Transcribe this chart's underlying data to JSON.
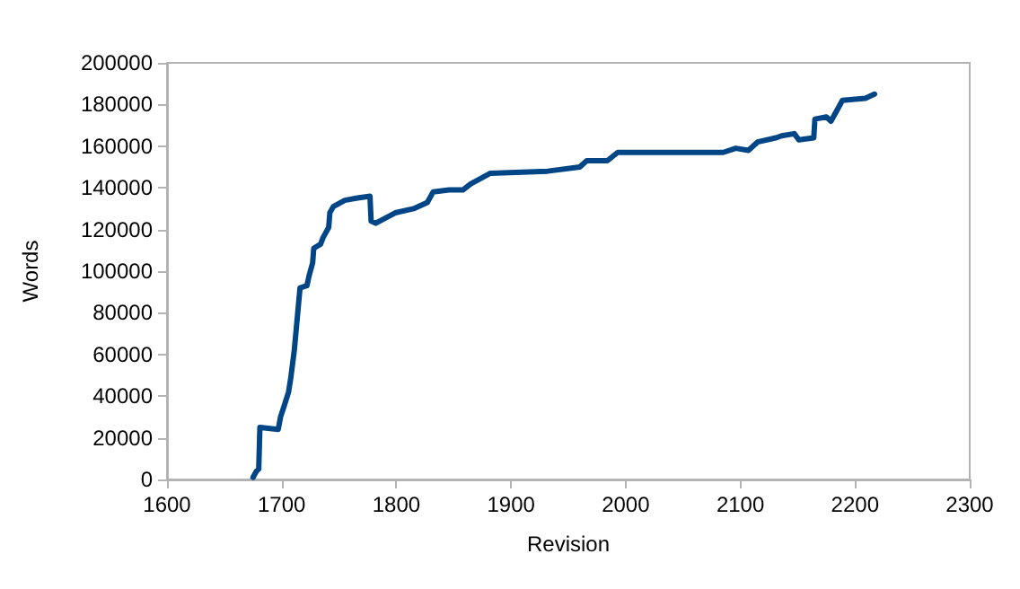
{
  "chart_data": {
    "type": "line",
    "xlabel": "Revision",
    "ylabel": "Words",
    "x": [
      1675,
      1678,
      1680,
      1681,
      1697,
      1699,
      1702,
      1706,
      1708,
      1711,
      1714,
      1716,
      1722,
      1724,
      1727,
      1728,
      1734,
      1736,
      1741,
      1742,
      1745,
      1755,
      1765,
      1777,
      1778,
      1782,
      1799,
      1815,
      1827,
      1832,
      1846,
      1858,
      1865,
      1872,
      1882,
      1932,
      1960,
      1966,
      1984,
      1993,
      2085,
      2096,
      2107,
      2115,
      2131,
      2136,
      2147,
      2151,
      2164,
      2165,
      2175,
      2179,
      2189,
      2209,
      2217
    ],
    "series": [
      {
        "color": "#004586",
        "values": [
          1000,
          4000,
          5000,
          25000,
          24000,
          30000,
          35000,
          42000,
          49000,
          62000,
          80000,
          92000,
          93000,
          98000,
          104000,
          111000,
          113000,
          116000,
          121000,
          128000,
          131000,
          134000,
          135000,
          136000,
          124000,
          123000,
          128000,
          130000,
          133000,
          138000,
          139000,
          139000,
          142000,
          144000,
          147000,
          148000,
          150000,
          153000,
          153000,
          157000,
          157000,
          159000,
          158000,
          162000,
          164000,
          165000,
          166000,
          163000,
          164000,
          173000,
          174000,
          172000,
          182000,
          183000,
          185000
        ]
      }
    ],
    "xlim": [
      1600,
      2300
    ],
    "xticks": [
      1600,
      1700,
      1800,
      1900,
      2000,
      2100,
      2200,
      2300
    ],
    "ylim": [
      0,
      200000
    ],
    "yticks": [
      0,
      20000,
      40000,
      60000,
      80000,
      100000,
      120000,
      140000,
      160000,
      180000,
      200000
    ],
    "marker": "none",
    "line_style": "solid"
  }
}
